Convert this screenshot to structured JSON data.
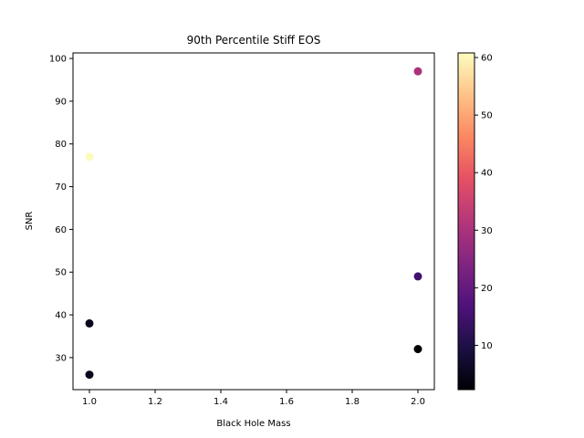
{
  "chart_data": {
    "type": "scatter",
    "title": "90th Percentile Stiff EOS",
    "xlabel": "Black Hole Mass",
    "ylabel": "SNR",
    "xlim": [
      0.95,
      2.05
    ],
    "ylim": [
      22.5,
      101.3
    ],
    "x_ticks": [
      1.0,
      1.2,
      1.4,
      1.6,
      1.8,
      2.0
    ],
    "x_tick_labels": [
      "1.0",
      "1.2",
      "1.4",
      "1.6",
      "1.8",
      "2.0"
    ],
    "y_ticks": [
      30,
      40,
      50,
      60,
      70,
      80,
      90,
      100
    ],
    "y_tick_labels": [
      "30",
      "40",
      "50",
      "60",
      "70",
      "80",
      "90",
      "100"
    ],
    "grid": false,
    "colormap": "magma",
    "colorbar": {
      "range": [
        2.3,
        60.8
      ],
      "ticks": [
        10,
        20,
        30,
        40,
        50,
        60
      ],
      "tick_labels": [
        "10",
        "20",
        "30",
        "40",
        "50",
        "60"
      ]
    },
    "points": [
      {
        "x": 1.0,
        "y": 77,
        "c": 60.5
      },
      {
        "x": 1.0,
        "y": 38,
        "c": 5
      },
      {
        "x": 1.0,
        "y": 26,
        "c": 5
      },
      {
        "x": 2.0,
        "y": 97,
        "c": 30
      },
      {
        "x": 2.0,
        "y": 49,
        "c": 15
      },
      {
        "x": 2.0,
        "y": 32,
        "c": 2.3
      }
    ]
  }
}
